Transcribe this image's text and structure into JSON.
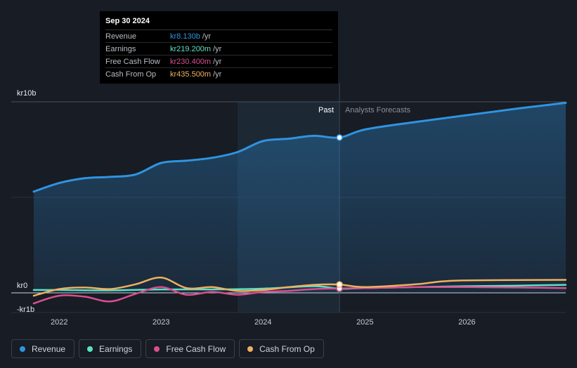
{
  "tooltip": {
    "date": "Sep 30 2024",
    "rows": [
      {
        "label": "Revenue",
        "value": "kr8.130b",
        "unit": "/yr",
        "color": "#2f94e0"
      },
      {
        "label": "Earnings",
        "value": "kr219.200m",
        "unit": "/yr",
        "color": "#5fe0c4"
      },
      {
        "label": "Free Cash Flow",
        "value": "kr230.400m",
        "unit": "/yr",
        "color": "#d94f8f"
      },
      {
        "label": "Cash From Op",
        "value": "kr435.500m",
        "unit": "/yr",
        "color": "#f0b060"
      }
    ]
  },
  "legend": [
    {
      "label": "Revenue",
      "color": "#2f94e0"
    },
    {
      "label": "Earnings",
      "color": "#5fe0c4"
    },
    {
      "label": "Free Cash Flow",
      "color": "#d94f8f"
    },
    {
      "label": "Cash From Op",
      "color": "#f0b060"
    }
  ],
  "chart_data": {
    "type": "line",
    "title": "",
    "xlabel": "",
    "ylabel": "",
    "x_range": [
      2021.75,
      2026.97
    ],
    "ylim": [
      -1,
      10
    ],
    "y_ticks": [
      {
        "value": 10,
        "label": "kr10b"
      },
      {
        "value": 0,
        "label": "kr0"
      },
      {
        "value": -1,
        "label": "-kr1b"
      }
    ],
    "x_ticks": [
      {
        "value": 2022,
        "label": "2022"
      },
      {
        "value": 2023,
        "label": "2023"
      },
      {
        "value": 2024,
        "label": "2024"
      },
      {
        "value": 2025,
        "label": "2025"
      },
      {
        "value": 2026,
        "label": "2026"
      }
    ],
    "past_label": "Past",
    "forecast_label": "Analysts Forecasts",
    "split_x": 2024.75,
    "highlight_start": 2023.75,
    "grid": true,
    "series": [
      {
        "name": "Revenue",
        "color": "#2f94e0",
        "area": true,
        "points": [
          [
            2021.75,
            5.3
          ],
          [
            2022.0,
            5.75
          ],
          [
            2022.25,
            6.0
          ],
          [
            2022.5,
            6.07
          ],
          [
            2022.75,
            6.2
          ],
          [
            2023.0,
            6.8
          ],
          [
            2023.25,
            6.92
          ],
          [
            2023.5,
            7.07
          ],
          [
            2023.75,
            7.37
          ],
          [
            2024.0,
            7.95
          ],
          [
            2024.25,
            8.07
          ],
          [
            2024.5,
            8.22
          ],
          [
            2024.75,
            8.13
          ],
          [
            2025.0,
            8.55
          ],
          [
            2025.5,
            8.95
          ],
          [
            2026.0,
            9.3
          ],
          [
            2026.5,
            9.65
          ],
          [
            2026.97,
            9.95
          ]
        ]
      },
      {
        "name": "Earnings",
        "color": "#5fe0c4",
        "points": [
          [
            2021.75,
            0.15
          ],
          [
            2022.0,
            0.15
          ],
          [
            2022.5,
            0.13
          ],
          [
            2023.0,
            0.18
          ],
          [
            2023.5,
            0.18
          ],
          [
            2024.0,
            0.22
          ],
          [
            2024.5,
            0.35
          ],
          [
            2024.75,
            0.219
          ],
          [
            2025.0,
            0.25
          ],
          [
            2025.5,
            0.3
          ],
          [
            2026.0,
            0.35
          ],
          [
            2026.5,
            0.38
          ],
          [
            2026.97,
            0.42
          ]
        ]
      },
      {
        "name": "Free Cash Flow",
        "color": "#d94f8f",
        "points": [
          [
            2021.75,
            -0.55
          ],
          [
            2022.0,
            -0.15
          ],
          [
            2022.25,
            -0.2
          ],
          [
            2022.5,
            -0.45
          ],
          [
            2022.75,
            -0.05
          ],
          [
            2023.0,
            0.3
          ],
          [
            2023.25,
            -0.1
          ],
          [
            2023.5,
            0.05
          ],
          [
            2023.75,
            -0.1
          ],
          [
            2024.0,
            0.05
          ],
          [
            2024.25,
            0.1
          ],
          [
            2024.5,
            0.2
          ],
          [
            2024.75,
            0.23
          ],
          [
            2025.0,
            0.25
          ],
          [
            2025.5,
            0.3
          ],
          [
            2026.0,
            0.3
          ],
          [
            2026.5,
            0.28
          ],
          [
            2026.97,
            0.25
          ]
        ]
      },
      {
        "name": "Cash From Op",
        "color": "#f0b060",
        "points": [
          [
            2021.75,
            -0.15
          ],
          [
            2022.0,
            0.2
          ],
          [
            2022.25,
            0.28
          ],
          [
            2022.5,
            0.2
          ],
          [
            2022.75,
            0.45
          ],
          [
            2023.0,
            0.8
          ],
          [
            2023.25,
            0.25
          ],
          [
            2023.5,
            0.3
          ],
          [
            2023.75,
            0.1
          ],
          [
            2024.0,
            0.15
          ],
          [
            2024.25,
            0.3
          ],
          [
            2024.5,
            0.42
          ],
          [
            2024.75,
            0.4355
          ],
          [
            2025.0,
            0.3
          ],
          [
            2025.5,
            0.45
          ],
          [
            2025.75,
            0.6
          ],
          [
            2026.0,
            0.65
          ],
          [
            2026.5,
            0.67
          ],
          [
            2026.97,
            0.68
          ]
        ]
      }
    ]
  }
}
